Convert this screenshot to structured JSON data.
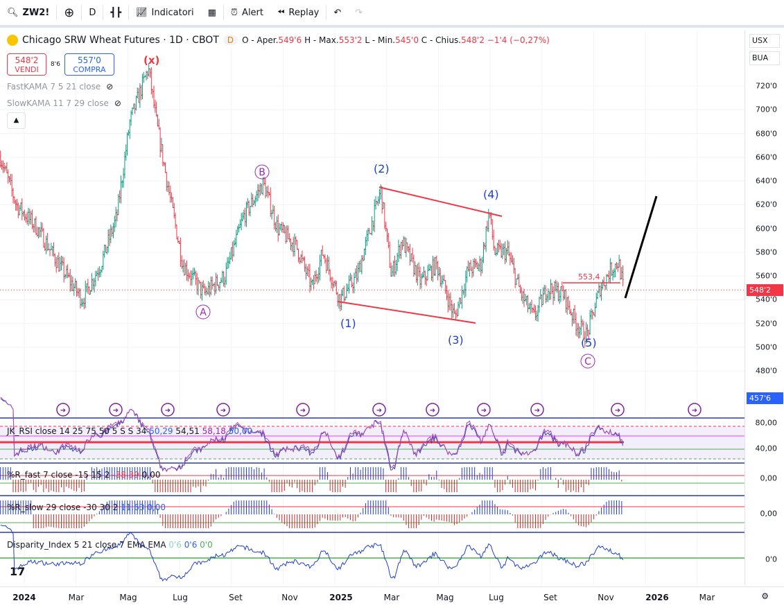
{
  "toolbar": {
    "symbol": "ZW2!",
    "interval": "D",
    "indicators": "Indicatori",
    "alert": "Alert",
    "replay": "Replay"
  },
  "legend": {
    "title": "Chicago SRW Wheat Futures · 1D · CBOT",
    "badge": "D",
    "o_label": "O - Aper.",
    "o": "549'6",
    "h_label": "H - Max.",
    "h": "553'2",
    "l_label": "L - Min.",
    "l": "545'0",
    "c_label": "C - Chius.",
    "c": "548'2",
    "change": "−1'4 (−0,27%)"
  },
  "trade": {
    "sell_price": "548'2",
    "sell_label": "VENDI",
    "spread": "8'6",
    "buy_price": "557'0",
    "buy_label": "COMPRA"
  },
  "indicators": [
    {
      "label": "FastKAMA 7 5 21 close"
    },
    {
      "label": "SlowKAMA 11 7 29 close"
    }
  ],
  "panes": {
    "rsi": {
      "label": "JK_RSI close 14 25 75 50 5 S S 34",
      "v1": "50,29",
      "v2": "54,51",
      "v3": "58,18",
      "v4": "50,00",
      "ax1": "80,00",
      "ax2": "40,00"
    },
    "rfast": {
      "label": "%R_fast 7 close -15 15 2",
      "v1": "-38,39",
      "v2": "0,00",
      "ax": "0,00"
    },
    "rslow": {
      "label": "%R_slow 29 close -30 30 2",
      "v1": "11,63",
      "v2": "0,00",
      "ax": "0,00"
    },
    "disp": {
      "label": "Disparity_Index 5 21 close 7 EMA EMA",
      "v1": "0'6",
      "v2": "0'6",
      "v3": "0'0",
      "ax": "0'0"
    }
  },
  "price_axis": {
    "currency": "USX",
    "unit": "BUA",
    "ticks": [
      "720'0",
      "700'0",
      "680'0",
      "660'0",
      "640'0",
      "620'0",
      "600'0",
      "580'0",
      "560'0",
      "540'0",
      "520'0",
      "500'0",
      "480'0"
    ],
    "last_price": "548'2",
    "low_tag": "457'6"
  },
  "time_axis": [
    "2024",
    "Mar",
    "Mag",
    "Lug",
    "Set",
    "Nov",
    "2025",
    "Mar",
    "Mag",
    "Lug",
    "Set",
    "Nov",
    "2026",
    "Mar"
  ],
  "annotations": {
    "x": "(x)",
    "A": "A",
    "B": "B",
    "C": "C",
    "w1": "(1)",
    "w2": "(2)",
    "w3": "(3)",
    "w4": "(4)",
    "w5": "(5)",
    "level": "553,4"
  },
  "colors": {
    "up": "#089981",
    "down": "#f23645",
    "wave": "#1e40c8",
    "abc": "#9c27b0"
  },
  "chart_data": {
    "type": "ohlc",
    "price_path_month_since_jan2024": [
      [
        -0.9,
        660
      ],
      [
        -0.3,
        620
      ],
      [
        0.5,
        600
      ],
      [
        1.3,
        570
      ],
      [
        2.2,
        540
      ],
      [
        2.9,
        570
      ],
      [
        3.5,
        610
      ],
      [
        4.0,
        690
      ],
      [
        4.7,
        735
      ],
      [
        5.0,
        690
      ],
      [
        5.4,
        640
      ],
      [
        6.0,
        570
      ],
      [
        6.8,
        545
      ],
      [
        7.6,
        560
      ],
      [
        8.3,
        610
      ],
      [
        9.05,
        638
      ],
      [
        9.6,
        600
      ],
      [
        10.3,
        585
      ],
      [
        10.9,
        550
      ],
      [
        11.3,
        580
      ],
      [
        11.95,
        540
      ],
      [
        12.6,
        560
      ],
      [
        13.1,
        600
      ],
      [
        13.5,
        632
      ],
      [
        13.9,
        560
      ],
      [
        14.3,
        590
      ],
      [
        15.0,
        555
      ],
      [
        15.6,
        570
      ],
      [
        16.3,
        525
      ],
      [
        16.8,
        565
      ],
      [
        17.3,
        570
      ],
      [
        17.6,
        615
      ],
      [
        17.8,
        580
      ],
      [
        18.3,
        580
      ],
      [
        18.8,
        545
      ],
      [
        19.3,
        525
      ],
      [
        19.8,
        550
      ],
      [
        20.4,
        545
      ],
      [
        20.9,
        520
      ],
      [
        21.3,
        510
      ],
      [
        21.8,
        550
      ],
      [
        22.2,
        565
      ],
      [
        22.5,
        572
      ],
      [
        22.7,
        548
      ]
    ],
    "ylim": [
      460,
      740
    ]
  }
}
